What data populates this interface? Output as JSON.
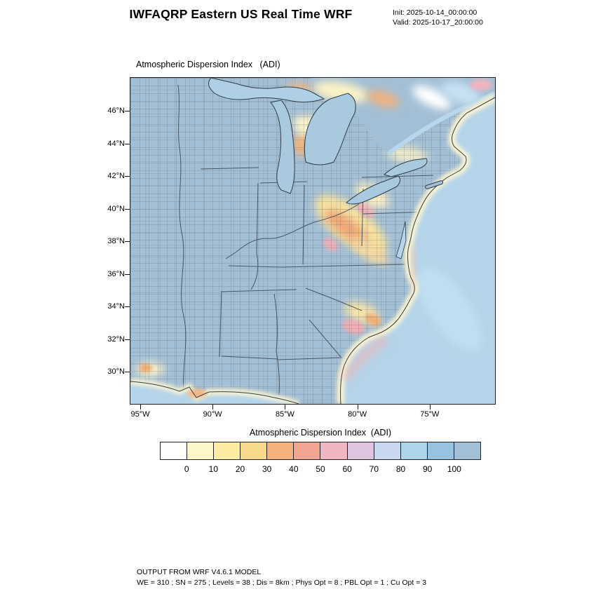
{
  "header": {
    "title": "IWFAQRP Eastern US Real Time WRF",
    "init_line": "Init: 2025-10-14_00:00:00",
    "valid_line": "Valid: 2025-10-17_20:00:00"
  },
  "plot": {
    "subtitle": "Atmospheric Dispersion Index   (ADI)",
    "lat_ticks": [
      "46°N",
      "44°N",
      "42°N",
      "40°N",
      "38°N",
      "36°N",
      "34°N",
      "32°N",
      "30°N"
    ],
    "lon_ticks": [
      "95°W",
      "90°W",
      "85°W",
      "80°W",
      "75°W"
    ]
  },
  "colorbar": {
    "title": "Atmospheric Dispersion Index  (ADI)",
    "ticks": [
      "0",
      "10",
      "20",
      "30",
      "40",
      "50",
      "60",
      "70",
      "80",
      "90",
      "100"
    ],
    "colors": [
      "#ffffff",
      "#fdf6c8",
      "#fbeca2",
      "#f8d98c",
      "#f5b27c",
      "#f2a493",
      "#f0b6c0",
      "#ddc5de",
      "#c9d8ee",
      "#aed4ea",
      "#97c2e2",
      "#a3bfd5"
    ]
  },
  "footer": {
    "line1": "OUTPUT FROM WRF V4.6.1 MODEL",
    "line2": "WE = 310 ; SN = 275 ; Levels = 38 ; Dis = 8km ; Phys Opt = 8 ; PBL Opt = 1 ; Cu Opt = 3"
  },
  "chart_data": {
    "type": "heatmap",
    "title": "Atmospheric Dispersion Index (ADI)",
    "x_tick_labels": [
      "95°W",
      "90°W",
      "85°W",
      "80°W",
      "75°W"
    ],
    "y_tick_labels": [
      "46°N",
      "44°N",
      "42°N",
      "40°N",
      "38°N",
      "36°N",
      "34°N",
      "32°N",
      "30°N"
    ],
    "colorbar_label": "Atmospheric Dispersion Index (ADI)",
    "colorbar_levels": [
      0,
      10,
      20,
      30,
      40,
      50,
      60,
      70,
      80,
      90,
      100
    ],
    "colorbar_colors": [
      "#ffffff",
      "#fdf6c8",
      "#fbeca2",
      "#f8d98c",
      "#f5b27c",
      "#f2a493",
      "#f0b6c0",
      "#ddc5de",
      "#c9d8ee",
      "#aed4ea",
      "#97c2e2",
      "#a3bfd5"
    ],
    "field_summary": "ADI near 100 (steel blue) over most of the eastern US land; reduced ADI (10-60, yellow/orange/pink) over the central Appalachians (PA/WV/VA), northern Michigan, southern Ontario/Quebec, the coastal Carolinas, the Gulf coast near the Mississippi delta, and Atlantic coastal waters"
  }
}
